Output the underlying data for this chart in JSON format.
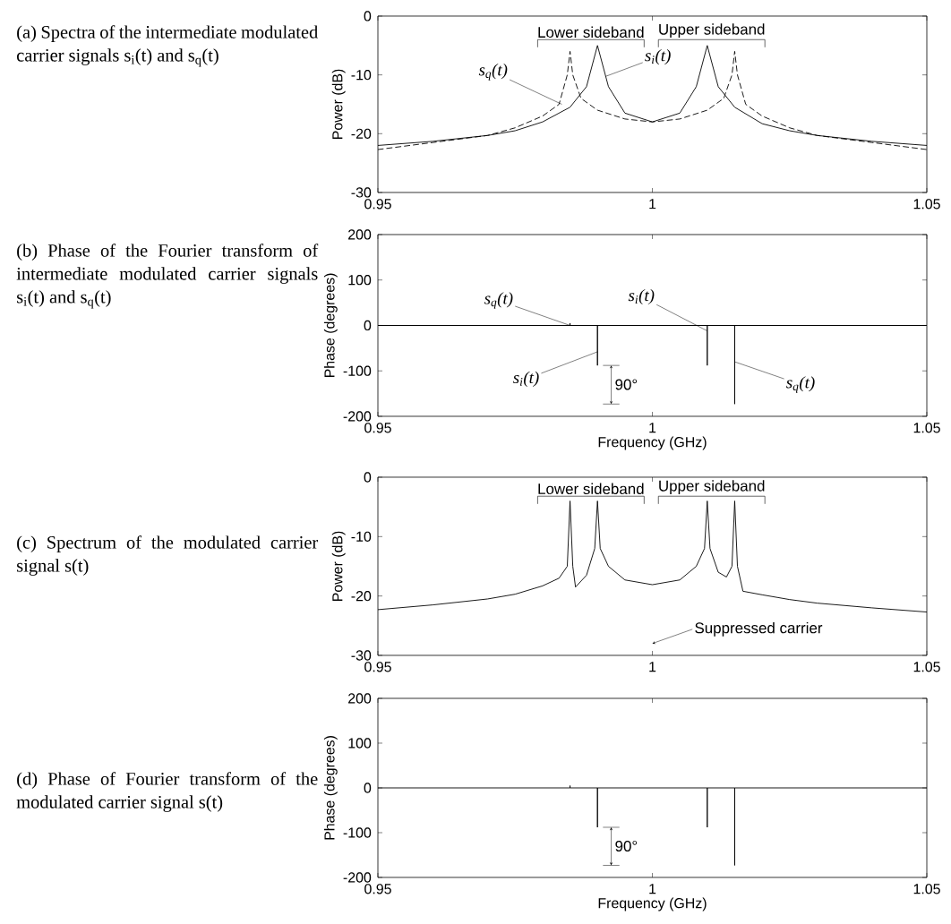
{
  "chart_data": [
    {
      "type": "line",
      "title": "(a) Spectra of the intermediate modulated carrier signals s$_{i}$(t) and s$_{q}$(t)",
      "ylabel": "Power (dB)",
      "xlim": [
        0.95,
        1.05
      ],
      "xticks": [
        0.95,
        1,
        1.05
      ],
      "ylim": [
        -30,
        0
      ],
      "yticks": [
        -30,
        -20,
        -10,
        0
      ],
      "series": [
        {
          "color": "#000000",
          "line_style": "solid",
          "x": [
            0.95,
            0.96,
            0.97,
            0.975,
            0.98,
            0.985,
            0.988,
            0.99,
            0.992,
            0.995,
            1.0,
            1.005,
            1.008,
            1.01,
            1.012,
            1.015,
            1.02,
            1.025,
            1.03,
            1.04,
            1.05
          ],
          "values": [
            -22,
            -21.3,
            -20.3,
            -19.5,
            -18,
            -15.5,
            -12,
            -5,
            -12,
            -16.5,
            -18,
            -16.5,
            -12,
            -5,
            -12,
            -15.5,
            -18.3,
            -19.5,
            -20.3,
            -21.3,
            -22
          ]
        },
        {
          "color": "#000000",
          "line_style": "dashed",
          "x": [
            0.95,
            0.96,
            0.97,
            0.975,
            0.98,
            0.983,
            0.9845,
            0.985,
            0.9855,
            0.987,
            0.99,
            0.995,
            1.0,
            1.005,
            1.01,
            1.013,
            1.0145,
            1.015,
            1.0155,
            1.017,
            1.02,
            1.025,
            1.03,
            1.04,
            1.05
          ],
          "values": [
            -22.7,
            -21.5,
            -20.3,
            -19,
            -17,
            -15,
            -10,
            -6,
            -10,
            -14,
            -16,
            -17.5,
            -18,
            -17.5,
            -16,
            -14,
            -10,
            -6,
            -10,
            -15,
            -17,
            -19,
            -20.3,
            -21.5,
            -22.7
          ]
        }
      ],
      "annotations": [
        "Lower sideband",
        "Upper sideband",
        {
          "text": "s$_{q}$(t)",
          "x": 0.9835,
          "y": -15
        },
        {
          "text": "s$_{i}$(t)",
          "x": 0.9915,
          "y": -10.25
        }
      ]
    },
    {
      "type": "line",
      "title": "(b) Phase of the Fourier transform of intermediate modulated carrier signals s$_{i}$(t) and s$_{q}$(t)",
      "xlabel": "Frequency (GHz)",
      "ylabel": "Phase (degrees)",
      "xlim": [
        0.95,
        1.05
      ],
      "xticks": [
        0.95,
        1,
        1.05
      ],
      "ylim": [
        -200,
        200
      ],
      "yticks": [
        -200,
        -100,
        0,
        100,
        200
      ],
      "series": [
        {
          "color": "#000000",
          "line_style": "solid",
          "x": [
            0.95,
            0.99,
            0.99,
            0.99,
            1.01,
            1.01,
            1.01,
            1.05
          ],
          "values": [
            0,
            0,
            -88,
            0,
            0,
            -88,
            0,
            0
          ]
        },
        {
          "color": "#000000",
          "line_style": "solid",
          "x": [
            0.95,
            0.985,
            0.985,
            0.985,
            1.015,
            1.015,
            1.015,
            1.05
          ],
          "values": [
            0,
            0,
            5,
            0,
            0,
            -173,
            0,
            0
          ]
        }
      ],
      "annotations": [
        {
          "text": "s$_{q}$(t)",
          "x": 0.985,
          "y": 0
        },
        {
          "text": "s$_{i}$(t)",
          "x": 0.99,
          "y": -58
        },
        {
          "text": "s$_{i}$(t)",
          "x": 1.01,
          "y": -12
        },
        {
          "text": "s$_{q}$(t)",
          "x": 1.015,
          "y": -80
        },
        "90°"
      ]
    },
    {
      "type": "line",
      "title": "(c) Spectrum of the modulated carrier signal s(t)",
      "ylabel": "Power (dB)",
      "xlim": [
        0.95,
        1.05
      ],
      "xticks": [
        0.95,
        1,
        1.05
      ],
      "ylim": [
        -30,
        0
      ],
      "yticks": [
        -30,
        -20,
        -10,
        0
      ],
      "series": [
        {
          "color": "#000000",
          "line_style": "solid",
          "x": [
            0.95,
            0.96,
            0.97,
            0.975,
            0.98,
            0.983,
            0.9845,
            0.985,
            0.9855,
            0.986,
            0.988,
            0.9895,
            0.99,
            0.9905,
            0.992,
            0.995,
            1.0,
            1.005,
            1.008,
            1.0095,
            1.01,
            1.0105,
            1.012,
            1.0135,
            1.0145,
            1.015,
            1.0155,
            1.0165,
            1.02,
            1.025,
            1.03,
            1.04,
            1.05
          ],
          "values": [
            -22.3,
            -21.5,
            -20.5,
            -19.7,
            -18.3,
            -17,
            -15,
            -4,
            -15,
            -18.5,
            -16.5,
            -12,
            -4,
            -12,
            -15,
            -17.3,
            -18.1,
            -17.3,
            -15,
            -12,
            -4,
            -12,
            -16,
            -16.8,
            -15,
            -4,
            -15,
            -19.2,
            -19.8,
            -20.6,
            -21.2,
            -22,
            -22.7
          ]
        }
      ],
      "annotations": [
        "Lower sideband",
        "Upper sideband",
        {
          "text": "Suppressed carrier",
          "x": 1.0,
          "y": -28
        }
      ]
    },
    {
      "type": "line",
      "title": "(d) Phase of Fourier transform of the modulated carrier signal s(t)",
      "xlabel": "Frequency (GHz)",
      "ylabel": "Phase (degrees)",
      "xlim": [
        0.95,
        1.05
      ],
      "xticks": [
        0.95,
        1,
        1.05
      ],
      "ylim": [
        -200,
        200
      ],
      "yticks": [
        -200,
        -100,
        0,
        100,
        200
      ],
      "series": [
        {
          "color": "#000000",
          "line_style": "solid",
          "x": [
            0.95,
            0.985,
            0.985,
            0.985,
            0.99,
            0.99,
            0.99,
            1.01,
            1.01,
            1.01,
            1.015,
            1.015,
            1.015,
            1.05
          ],
          "values": [
            0,
            0,
            5,
            0,
            0,
            -88,
            0,
            0,
            -88,
            0,
            0,
            -173,
            0,
            0
          ]
        }
      ],
      "annotations": [
        "90°"
      ]
    }
  ]
}
